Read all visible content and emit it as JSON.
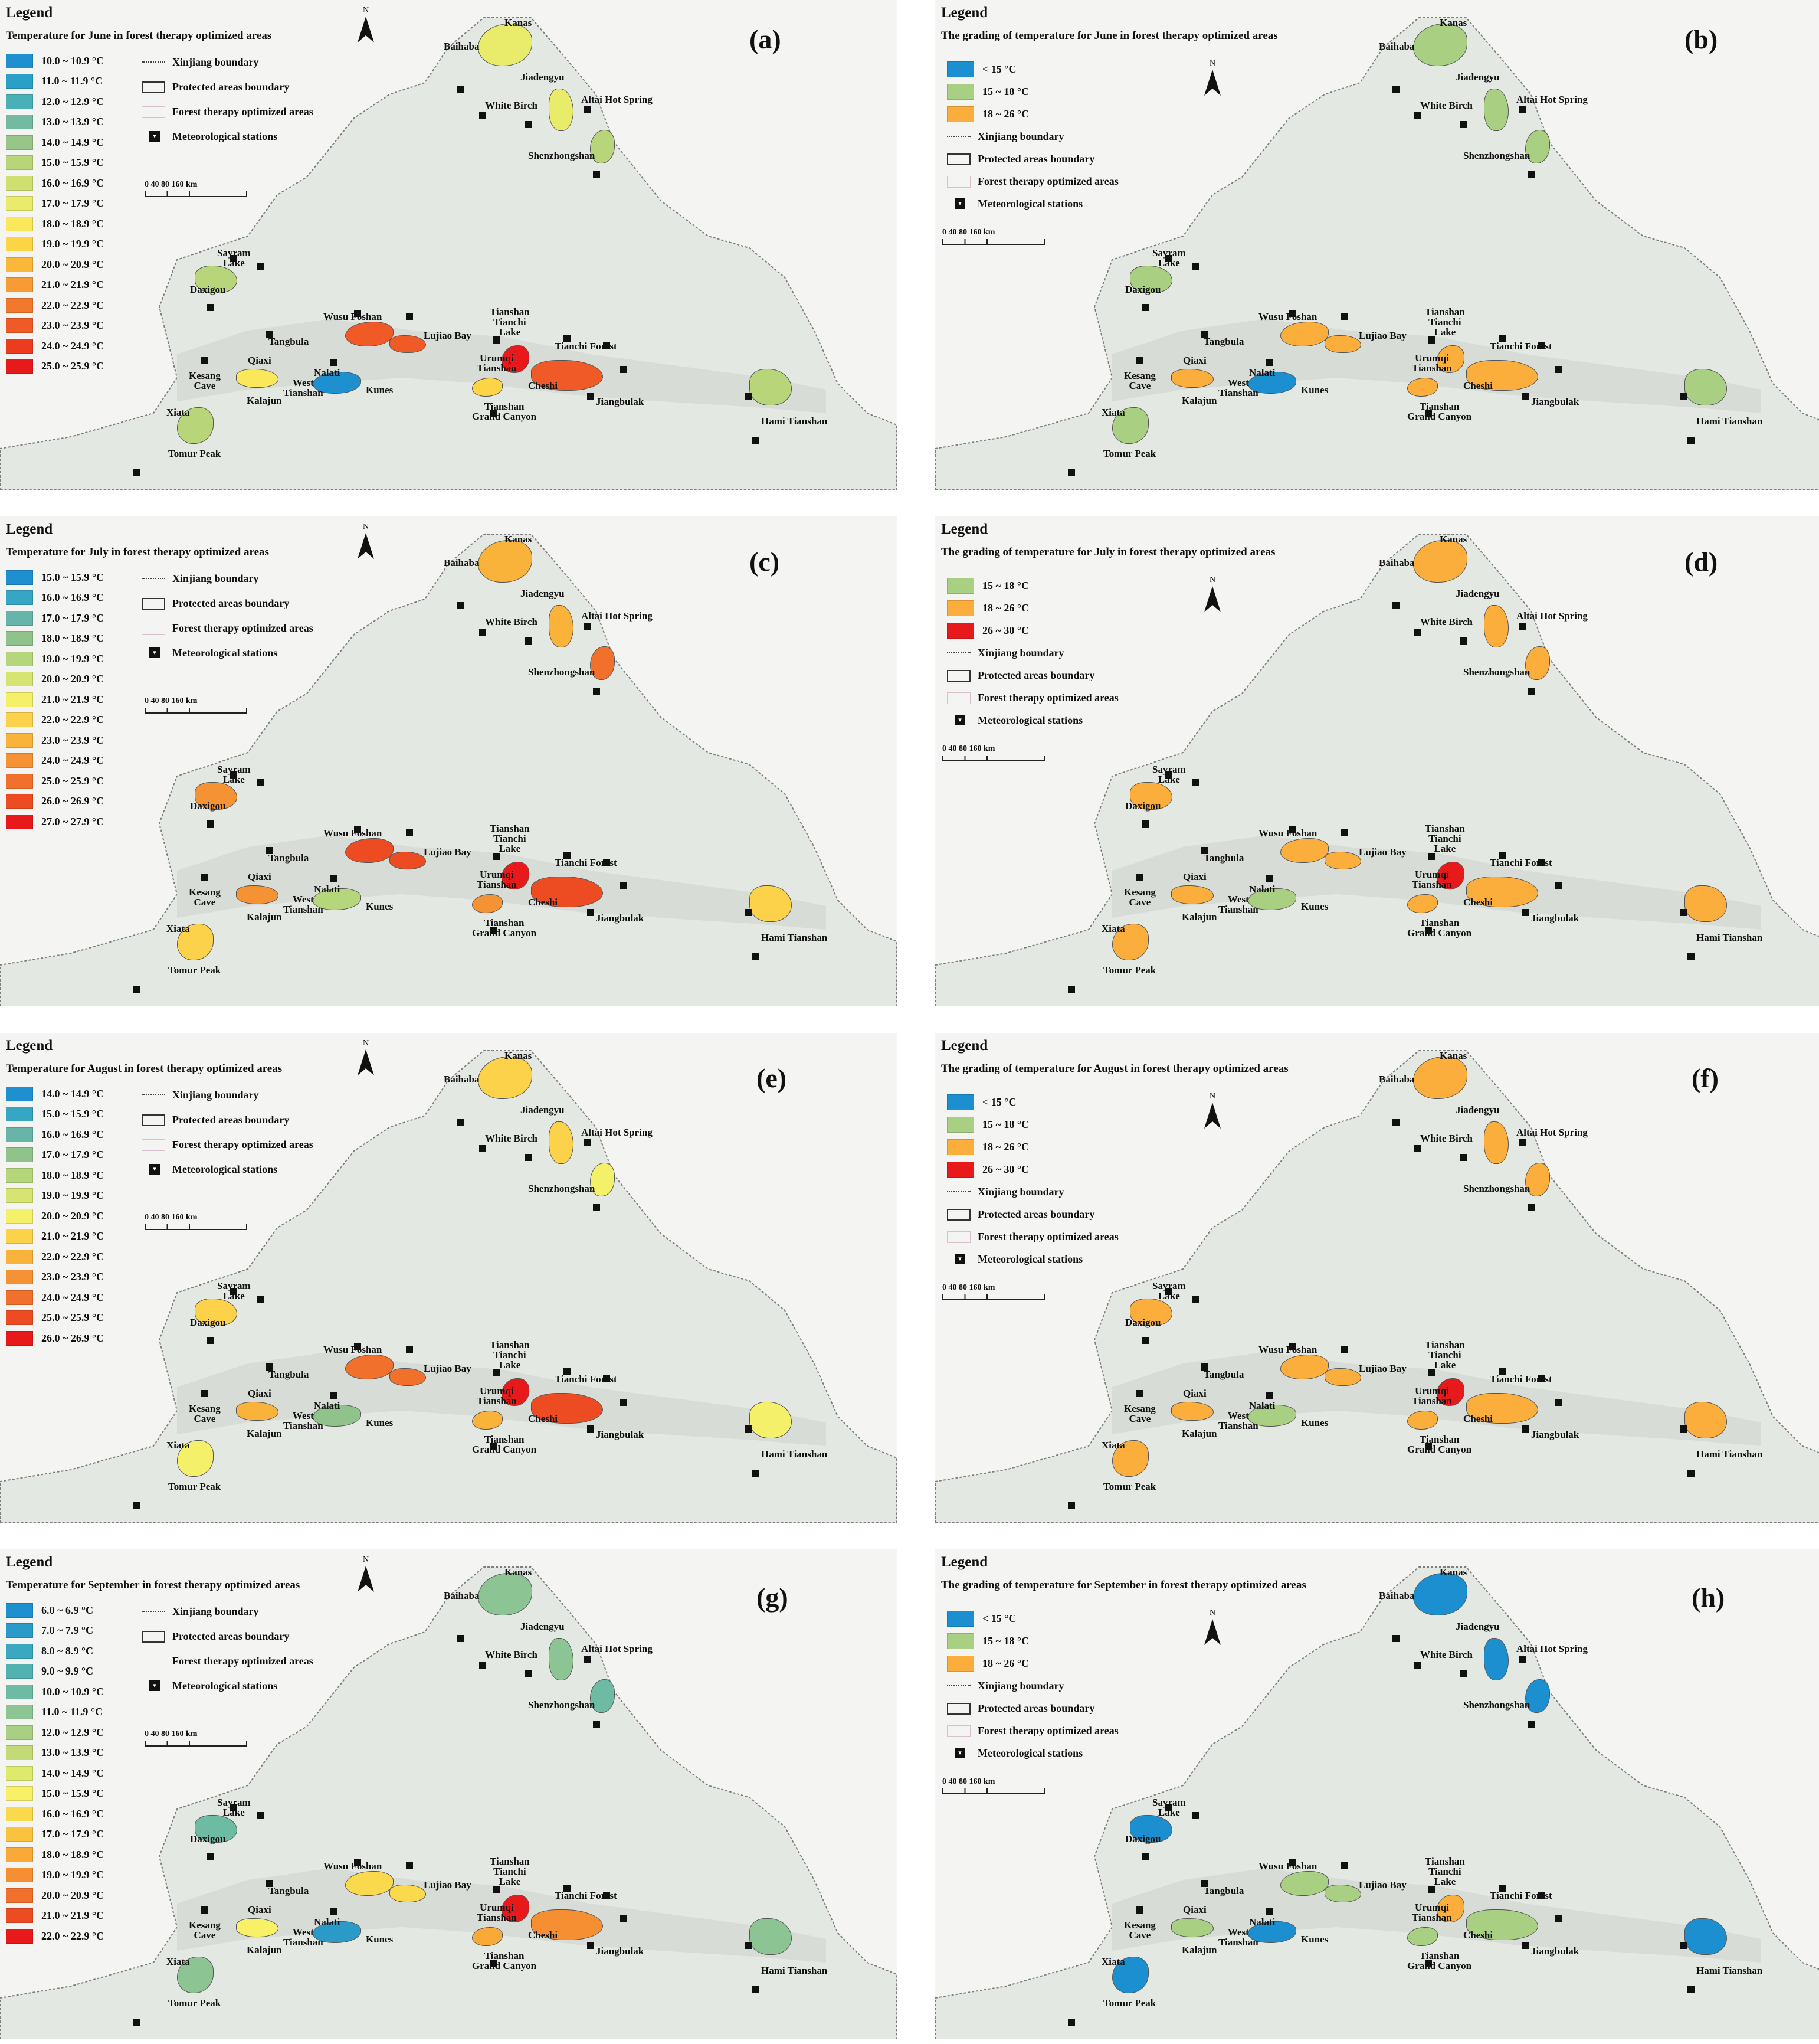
{
  "common": {
    "legend_heading": "Legend",
    "symbols": {
      "boundary": "Xinjiang boundary",
      "protected": "Protected areas boundary",
      "forest": "Forest therapy optimized areas",
      "stations": "Meteorological stations"
    },
    "scale_text": "0 40 80 160 km",
    "north": "N",
    "places": {
      "kanas": "Kanas",
      "baihaba": "Baihaba",
      "jiadengyu": "Jiadengyu",
      "white_birch": "White Birch",
      "altai": "Altai Hot Spring",
      "shenzhong": "Shenzhongshan",
      "sayram": "Sayram\nLake",
      "daxigou": "Daxigou",
      "wusu": "Wusu Foshan",
      "lujiao": "Lujiao Bay",
      "tianchi_lake": "Tianshan\nTianchi\nLake",
      "tianchi_forest": "Tianchi Forest",
      "tangbula": "Tangbula",
      "urumqi": "Urumqi\nTianshan",
      "qiaxi": "Qiaxi",
      "nalati": "Nalati",
      "kesang": "Kesang\nCave",
      "west_tianshan": "West\nTianshan",
      "kunes": "Kunes",
      "cheshi": "Cheshi",
      "jiangbulak": "Jiangbulak",
      "kalajun": "Kalajun",
      "canyon": "Tianshan\nGrand Canyon",
      "hami": "Hami Tianshan",
      "xiata": "Xiata",
      "tomur": "Tomur Peak"
    }
  },
  "panels": [
    {
      "label": "(a)",
      "type": "continuous",
      "title": "Temperature for June in forest therapy optimized areas",
      "ramp": [
        "10.0 ~ 10.9 °C",
        "11.0 ~ 11.9 °C",
        "12.0 ~ 12.9 °C",
        "13.0 ~ 13.9 °C",
        "14.0 ~ 14.9 °C",
        "15.0 ~ 15.9 °C",
        "16.0 ~ 16.9 °C",
        "17.0 ~ 17.9 °C",
        "18.0 ~ 18.9 °C",
        "19.0 ~ 19.9 °C",
        "20.0 ~ 20.9 °C",
        "21.0 ~ 21.9 °C",
        "22.0 ~ 22.9 °C",
        "23.0 ~ 23.9 °C",
        "24.0 ~ 24.9 °C",
        "25.0 ~ 25.9 °C"
      ],
      "colors": [
        "#1e8fcf",
        "#2aa0c8",
        "#4ab0b8",
        "#74b9a2",
        "#98c688",
        "#b8d57a",
        "#d0e070",
        "#e8ec6a",
        "#fbe75a",
        "#fcd446",
        "#f9b83a",
        "#f79c34",
        "#f2792c",
        "#ef5a26",
        "#ec3c20",
        "#e8191b"
      ]
    },
    {
      "label": "(b)",
      "type": "graded",
      "title": "The grading of temperature for June in forest therapy optimized areas",
      "grades": [
        {
          "label": "< 15 °C",
          "color": "#1c8fd0"
        },
        {
          "label": "15 ~ 18 °C",
          "color": "#a9cf82"
        },
        {
          "label": "18 ~ 26 °C",
          "color": "#fbae3c"
        }
      ]
    },
    {
      "label": "(c)",
      "type": "continuous",
      "title": "Temperature for July in forest therapy optimized areas",
      "ramp": [
        "15.0 ~ 15.9 °C",
        "16.0 ~ 16.9 °C",
        "17.0 ~ 17.9 °C",
        "18.0 ~ 18.9 °C",
        "19.0 ~ 19.9 °C",
        "20.0 ~ 20.9 °C",
        "21.0 ~ 21.9 °C",
        "22.0 ~ 22.9 °C",
        "23.0 ~ 23.9 °C",
        "24.0 ~ 24.9 °C",
        "25.0 ~ 25.9 °C",
        "26.0 ~ 26.9 °C",
        "27.0 ~ 27.9 °C"
      ],
      "colors": [
        "#1e8fcf",
        "#36a6c4",
        "#67b5a8",
        "#90c28c",
        "#b6d67c",
        "#d6e472",
        "#f5f06a",
        "#fbd24a",
        "#f9b33b",
        "#f59233",
        "#f1702b",
        "#ed4c23",
        "#e8191b"
      ]
    },
    {
      "label": "(d)",
      "type": "graded",
      "title": "The grading of temperature for July in forest therapy optimized areas",
      "grades": [
        {
          "label": "15 ~ 18 °C",
          "color": "#a9cf82"
        },
        {
          "label": "18 ~ 26 °C",
          "color": "#fbae3c"
        },
        {
          "label": "26 ~ 30 °C",
          "color": "#e8191b"
        }
      ]
    },
    {
      "label": "(e)",
      "type": "continuous",
      "title": "Temperature for August in forest therapy optimized areas",
      "ramp": [
        "14.0 ~ 14.9 °C",
        "15.0 ~ 15.9 °C",
        "16.0 ~ 16.9 °C",
        "17.0 ~ 17.9 °C",
        "18.0 ~ 18.9 °C",
        "19.0 ~ 19.9 °C",
        "20.0 ~ 20.9 °C",
        "21.0 ~ 21.9 °C",
        "22.0 ~ 22.9 °C",
        "23.0 ~ 23.9 °C",
        "24.0 ~ 24.9 °C",
        "25.0 ~ 25.9 °C",
        "26.0 ~ 26.9 °C"
      ],
      "colors": [
        "#1e8fcf",
        "#36a6c4",
        "#67b5a8",
        "#90c28c",
        "#b6d67c",
        "#d6e472",
        "#f5f06a",
        "#fbd24a",
        "#f9b33b",
        "#f59233",
        "#f1702b",
        "#ed4c23",
        "#e8191b"
      ]
    },
    {
      "label": "(f)",
      "type": "graded",
      "title": "The grading of temperature for August in forest therapy optimized areas",
      "grades": [
        {
          "label": "< 15 °C",
          "color": "#1c8fd0"
        },
        {
          "label": "15 ~ 18 °C",
          "color": "#a9cf82"
        },
        {
          "label": "18 ~ 26 °C",
          "color": "#fbae3c"
        },
        {
          "label": "26 ~ 30 °C",
          "color": "#e8191b"
        }
      ]
    },
    {
      "label": "(g)",
      "type": "continuous",
      "title": "Temperature for September in forest therapy optimized areas",
      "ramp": [
        "6.0 ~ 6.9 °C",
        "7.0 ~ 7.9 °C",
        "8.0 ~ 8.9 °C",
        "9.0 ~ 9.9 °C",
        "10.0 ~ 10.9 °C",
        "11.0 ~ 11.9 °C",
        "12.0 ~ 12.9 °C",
        "13.0 ~ 13.9 °C",
        "14.0 ~ 14.9 °C",
        "15.0 ~ 15.9 °C",
        "16.0 ~ 16.9 °C",
        "17.0 ~ 17.9 °C",
        "18.0 ~ 18.9 °C",
        "19.0 ~ 19.9 °C",
        "20.0 ~ 20.9 °C",
        "21.0 ~ 21.9 °C",
        "22.0 ~ 22.9 °C"
      ],
      "colors": [
        "#1e8fcf",
        "#2a9bc8",
        "#3aa8c0",
        "#52b2b2",
        "#6ebba3",
        "#8cc593",
        "#a8cf84",
        "#c4da78",
        "#ddea6c",
        "#f8f066",
        "#fbd94d",
        "#f9c33f",
        "#f8a938",
        "#f68f32",
        "#f1702b",
        "#ed4c23",
        "#e8191b"
      ]
    },
    {
      "label": "(h)",
      "type": "graded",
      "title": "The grading of temperature for September in forest therapy optimized areas",
      "grades": [
        {
          "label": "< 15 °C",
          "color": "#1c8fd0"
        },
        {
          "label": "15 ~ 18 °C",
          "color": "#a9cf82"
        },
        {
          "label": "18 ~ 26 °C",
          "color": "#fbae3c"
        }
      ]
    }
  ]
}
